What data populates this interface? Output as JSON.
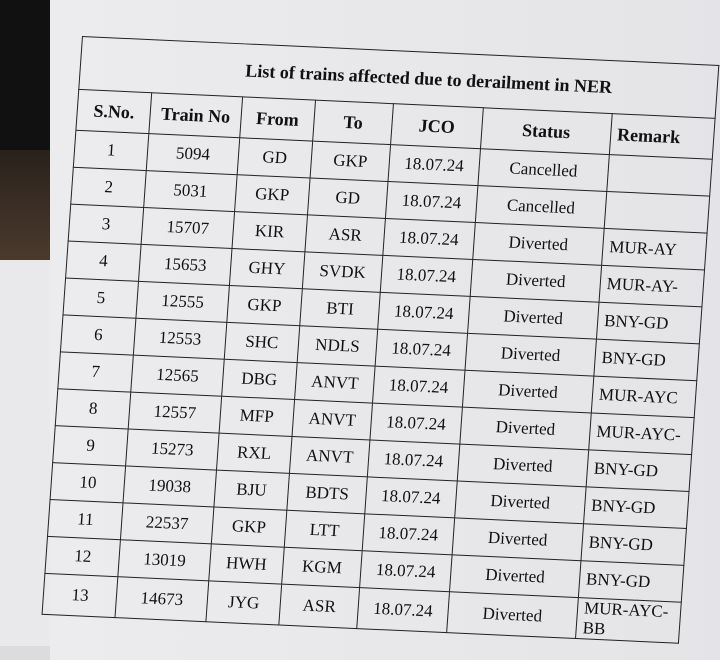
{
  "title": "List of trains affected due to derailment in NER",
  "columns": [
    "S.No.",
    "Train No",
    "From",
    "To",
    "JCO",
    "Status",
    "Remark"
  ],
  "rows": [
    [
      "1",
      "5094",
      "GD",
      "GKP",
      "18.07.24",
      "Cancelled",
      ""
    ],
    [
      "2",
      "5031",
      "GKP",
      "GD",
      "18.07.24",
      "Cancelled",
      ""
    ],
    [
      "3",
      "15707",
      "KIR",
      "ASR",
      "18.07.24",
      "Diverted",
      "MUR-AY"
    ],
    [
      "4",
      "15653",
      "GHY",
      "SVDK",
      "18.07.24",
      "Diverted",
      "MUR-AY-"
    ],
    [
      "5",
      "12555",
      "GKP",
      "BTI",
      "18.07.24",
      "Diverted",
      "BNY-GD"
    ],
    [
      "6",
      "12553",
      "SHC",
      "NDLS",
      "18.07.24",
      "Diverted",
      "BNY-GD"
    ],
    [
      "7",
      "12565",
      "DBG",
      "ANVT",
      "18.07.24",
      "Diverted",
      "MUR-AYC"
    ],
    [
      "8",
      "12557",
      "MFP",
      "ANVT",
      "18.07.24",
      "Diverted",
      "MUR-AYC-"
    ],
    [
      "9",
      "15273",
      "RXL",
      "ANVT",
      "18.07.24",
      "Diverted",
      "BNY-GD"
    ],
    [
      "10",
      "19038",
      "BJU",
      "BDTS",
      "18.07.24",
      "Diverted",
      "BNY-GD"
    ],
    [
      "11",
      "22537",
      "GKP",
      "LTT",
      "18.07.24",
      "Diverted",
      "BNY-GD"
    ],
    [
      "12",
      "13019",
      "HWH",
      "KGM",
      "18.07.24",
      "Diverted",
      "BNY-GD"
    ],
    [
      "13",
      "14673",
      "JYG",
      "ASR",
      "18.07.24",
      "Diverted",
      "MUR-AYC-BB"
    ]
  ]
}
